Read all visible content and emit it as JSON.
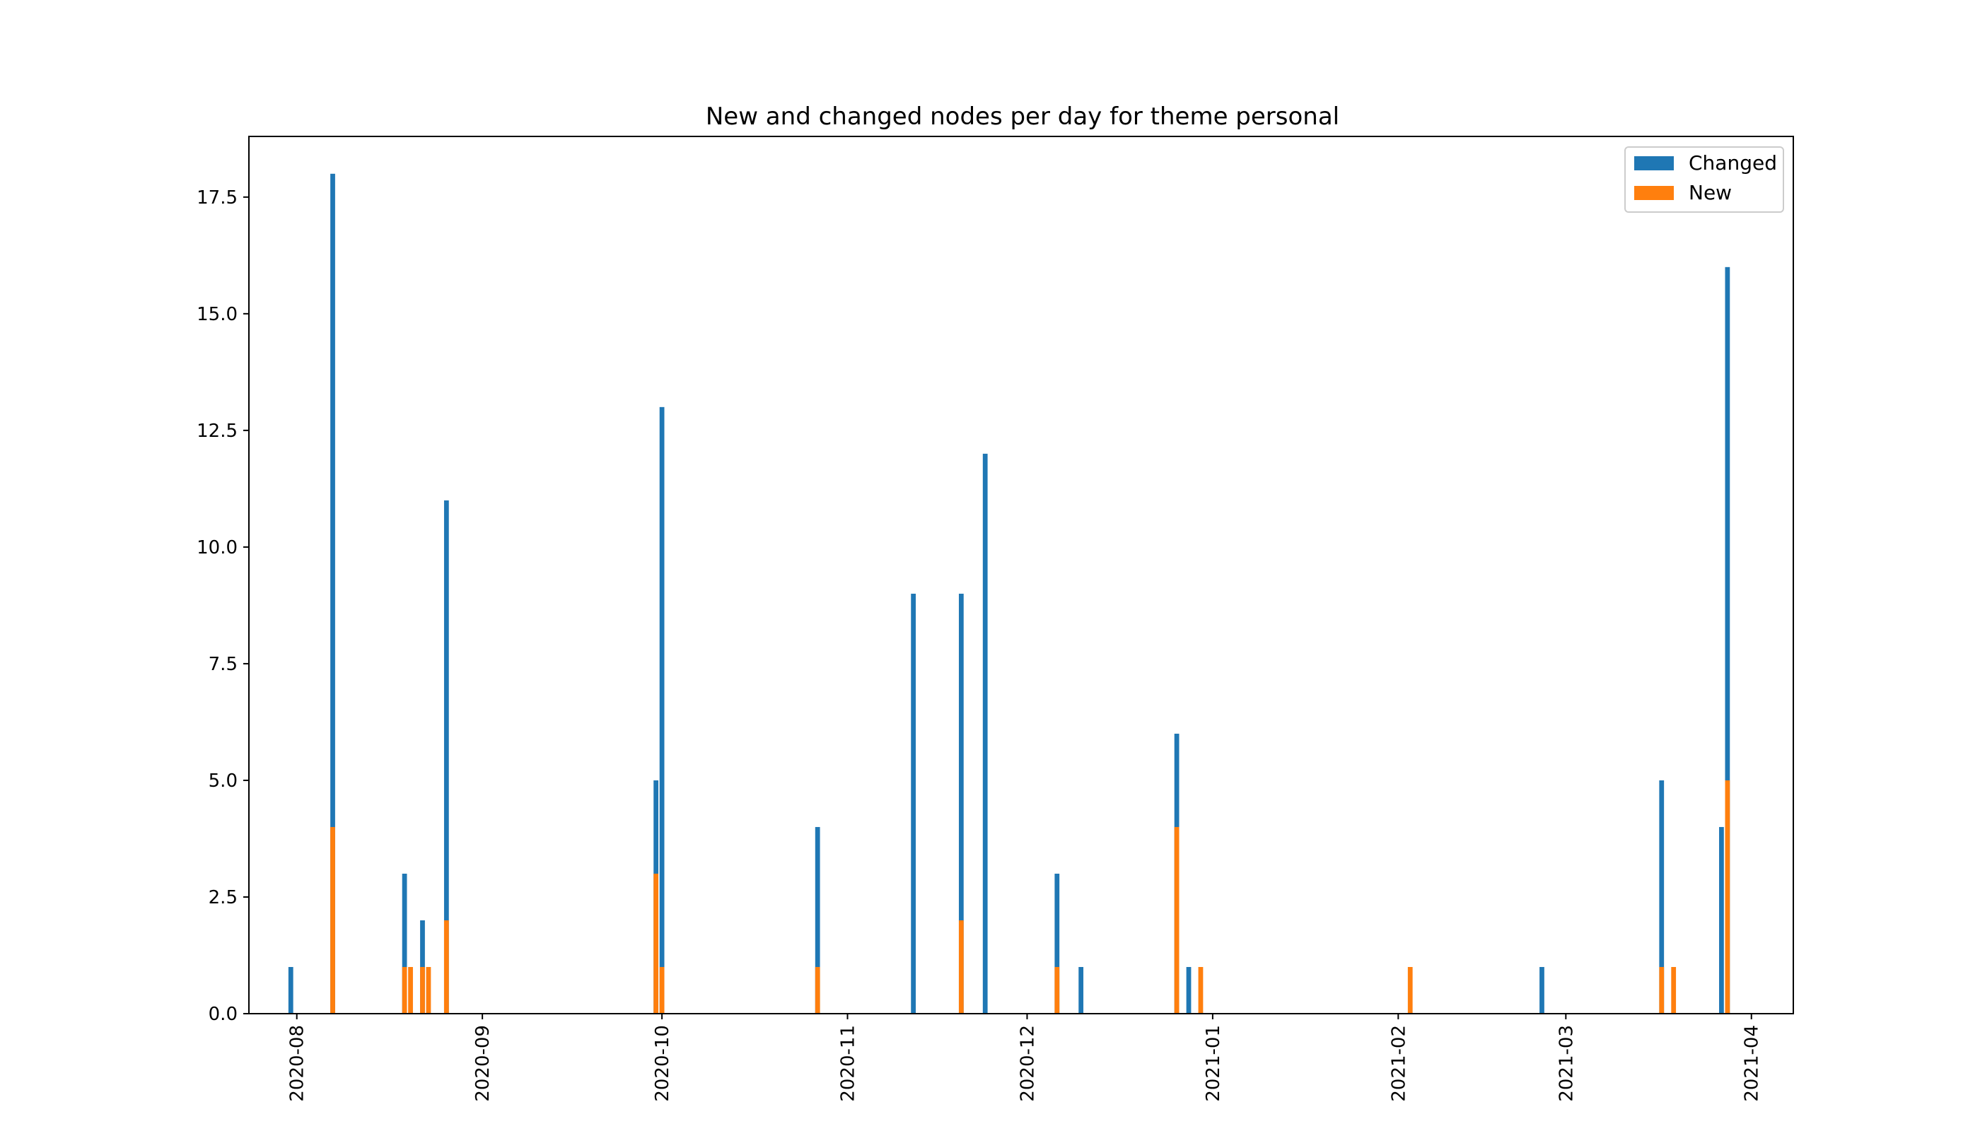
{
  "chart_data": {
    "type": "bar",
    "stacked": true,
    "title": "New and changed nodes per day for theme personal",
    "xlabel": "",
    "ylabel": "",
    "x_axis": {
      "type": "date",
      "range": [
        "2020-07-24",
        "2021-04-08"
      ],
      "ticks": [
        "2020-08-01",
        "2020-09-01",
        "2020-10-01",
        "2020-11-01",
        "2020-12-01",
        "2021-01-01",
        "2021-02-01",
        "2021-03-01",
        "2021-04-01"
      ],
      "tick_labels": [
        "2020-08",
        "2020-09",
        "2020-10",
        "2020-11",
        "2020-12",
        "2021-01",
        "2021-02",
        "2021-03",
        "2021-04"
      ]
    },
    "y_axis": {
      "ylim": [
        0,
        18.8
      ],
      "ticks": [
        0,
        2.5,
        5,
        7.5,
        10,
        12.5,
        15,
        17.5
      ],
      "tick_labels": [
        "0.0",
        "2.5",
        "5.0",
        "7.5",
        "10.0",
        "12.5",
        "15.0",
        "17.5"
      ]
    },
    "legend": {
      "position": "top-right"
    },
    "grid": false,
    "series": [
      {
        "name": "Changed",
        "color": "#1f77b4",
        "role": "total"
      },
      {
        "name": "New",
        "color": "#ff7f0e",
        "role": "new"
      }
    ],
    "points": [
      {
        "date": "2020-07-31",
        "changed": 1,
        "new": 0
      },
      {
        "date": "2020-08-07",
        "changed": 18,
        "new": 4
      },
      {
        "date": "2020-08-19",
        "changed": 3,
        "new": 1
      },
      {
        "date": "2020-08-20",
        "changed": 0,
        "new": 1
      },
      {
        "date": "2020-08-22",
        "changed": 2,
        "new": 1
      },
      {
        "date": "2020-08-23",
        "changed": 0,
        "new": 1
      },
      {
        "date": "2020-08-26",
        "changed": 11,
        "new": 2
      },
      {
        "date": "2020-09-30",
        "changed": 5,
        "new": 3
      },
      {
        "date": "2020-10-01",
        "changed": 13,
        "new": 1
      },
      {
        "date": "2020-10-27",
        "changed": 4,
        "new": 1
      },
      {
        "date": "2020-11-12",
        "changed": 9,
        "new": 0
      },
      {
        "date": "2020-11-20",
        "changed": 9,
        "new": 2
      },
      {
        "date": "2020-11-24",
        "changed": 12,
        "new": 0
      },
      {
        "date": "2020-12-06",
        "changed": 3,
        "new": 1
      },
      {
        "date": "2020-12-10",
        "changed": 1,
        "new": 0
      },
      {
        "date": "2020-12-26",
        "changed": 6,
        "new": 4
      },
      {
        "date": "2020-12-28",
        "changed": 1,
        "new": 0
      },
      {
        "date": "2020-12-30",
        "changed": 0,
        "new": 1
      },
      {
        "date": "2021-02-03",
        "changed": 0,
        "new": 1
      },
      {
        "date": "2021-02-25",
        "changed": 1,
        "new": 0
      },
      {
        "date": "2021-03-17",
        "changed": 5,
        "new": 1
      },
      {
        "date": "2021-03-19",
        "changed": 0,
        "new": 1
      },
      {
        "date": "2021-03-27",
        "changed": 4,
        "new": 0
      },
      {
        "date": "2021-03-28",
        "changed": 16,
        "new": 5
      }
    ]
  }
}
